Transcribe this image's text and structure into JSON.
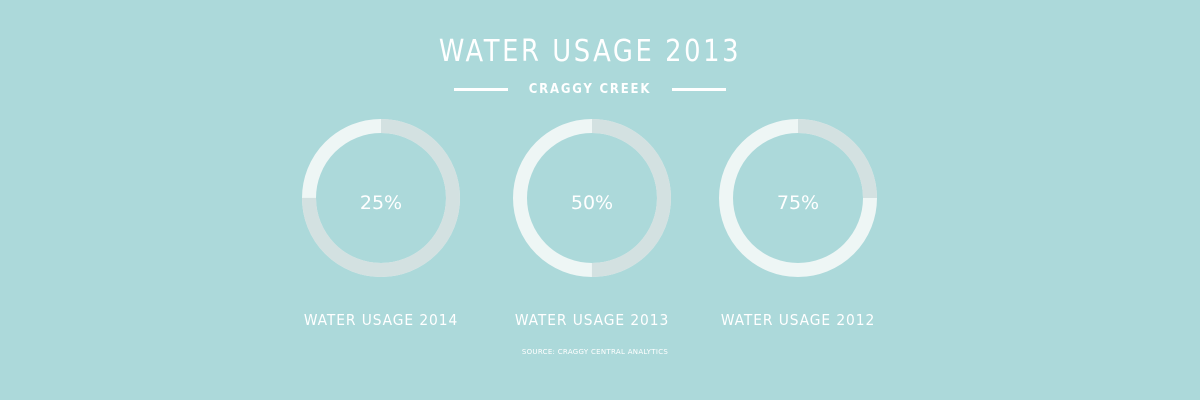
{
  "header": {
    "title": "WATER USAGE 2013",
    "subtitle": "CRAGGY CREEK"
  },
  "colors": {
    "background": "#acd9da",
    "ring_filled": "#eef6f5",
    "ring_remaining": "#d3e1e1",
    "text": "#ffffff"
  },
  "chart_data": {
    "type": "pie",
    "title": "WATER USAGE 2013",
    "subtitle": "CRAGGY CREEK",
    "style": "donut",
    "items": [
      {
        "label": "WATER USAGE 2014",
        "value": 25,
        "value_label": "25%"
      },
      {
        "label": "WATER USAGE 2013",
        "value": 50,
        "value_label": "50%"
      },
      {
        "label": "WATER USAGE 2012",
        "value": 75,
        "value_label": "75%"
      }
    ]
  },
  "footer": {
    "source": "SOURCE: CRAGGY CENTRAL ANALYTICS"
  }
}
